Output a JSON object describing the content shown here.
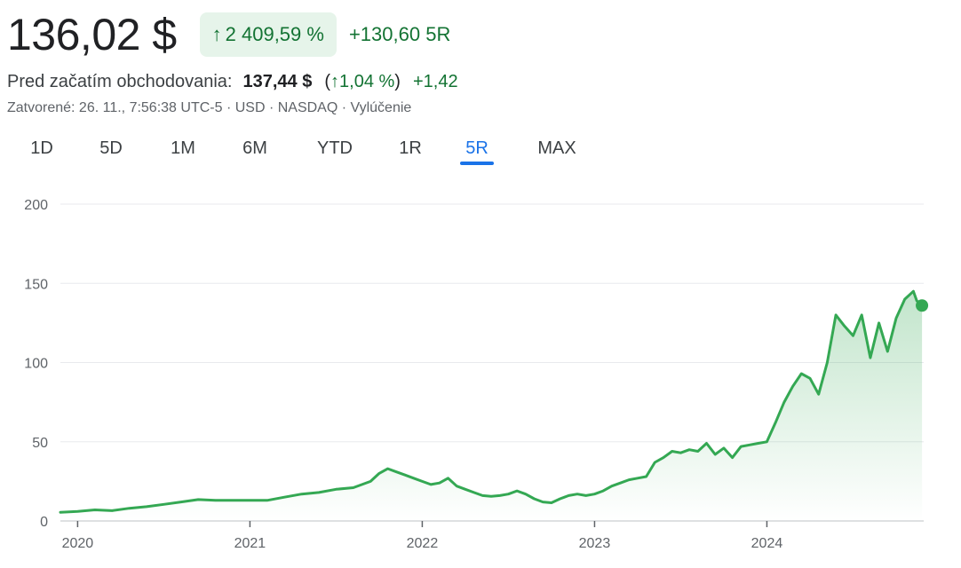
{
  "header": {
    "price": "136,02 $",
    "change_pct": "2 409,59 %",
    "change_abs": "+130,60 5R",
    "arrow_icon": "arrow-up-icon"
  },
  "premarket": {
    "label": "Pred začatím obchodovania:",
    "price": "137,44 $",
    "open_paren": "(",
    "change_pct": "1,04 %",
    "close_paren": ")",
    "change_abs": "+1,42"
  },
  "meta": {
    "text": "Zatvorené: 26. 11., 7:56:38 UTC-5 · USD · NASDAQ · Vylúčenie"
  },
  "ranges": [
    {
      "label": "1D"
    },
    {
      "label": "5D"
    },
    {
      "label": "1M"
    },
    {
      "label": "6M"
    },
    {
      "label": "YTD"
    },
    {
      "label": "1R"
    },
    {
      "label": "5R",
      "active": true
    },
    {
      "label": "MAX"
    }
  ],
  "colors": {
    "line": "#34a853",
    "positive": "#137333",
    "pill_bg": "#e6f4ea",
    "accent": "#1a73e8",
    "grid": "#e8eaed"
  },
  "chart_data": {
    "type": "area",
    "title": "",
    "xlabel": "",
    "ylabel": "",
    "ylim": [
      0,
      200
    ],
    "yticks": [
      0,
      50,
      100,
      150,
      200
    ],
    "xticks": [
      2020,
      2021,
      2022,
      2023,
      2024
    ],
    "xlim": [
      2019.9,
      2024.91
    ],
    "grid": true,
    "legend": "none",
    "series": [
      {
        "x": [
          2019.9,
          2020.0,
          2020.1,
          2020.2,
          2020.3,
          2020.4,
          2020.5,
          2020.6,
          2020.7,
          2020.8,
          2020.9,
          2021.0,
          2021.1,
          2021.2,
          2021.3,
          2021.4,
          2021.5,
          2021.6,
          2021.7,
          2021.75,
          2021.8,
          2021.85,
          2021.9,
          2021.95,
          2022.0,
          2022.05,
          2022.1,
          2022.15,
          2022.2,
          2022.25,
          2022.3,
          2022.35,
          2022.4,
          2022.45,
          2022.5,
          2022.55,
          2022.6,
          2022.65,
          2022.7,
          2022.75,
          2022.8,
          2022.85,
          2022.9,
          2022.95,
          2023.0,
          2023.05,
          2023.1,
          2023.15,
          2023.2,
          2023.25,
          2023.3,
          2023.35,
          2023.4,
          2023.45,
          2023.5,
          2023.55,
          2023.6,
          2023.65,
          2023.7,
          2023.75,
          2023.8,
          2023.85,
          2023.9,
          2023.95,
          2024.0,
          2024.05,
          2024.1,
          2024.15,
          2024.2,
          2024.25,
          2024.3,
          2024.35,
          2024.4,
          2024.45,
          2024.5,
          2024.55,
          2024.6,
          2024.65,
          2024.7,
          2024.75,
          2024.8,
          2024.85,
          2024.87,
          2024.9
        ],
        "y": [
          5.5,
          6,
          7,
          6.5,
          8,
          9,
          10.5,
          12,
          13.5,
          13,
          13,
          13,
          13,
          15,
          17,
          18,
          20,
          21,
          25,
          30,
          33,
          31,
          29,
          27,
          25,
          23,
          24,
          27,
          22,
          20,
          18,
          16,
          15.5,
          16,
          17,
          19,
          17,
          14,
          12,
          11.5,
          14,
          16,
          17,
          16,
          17,
          19,
          22,
          24,
          26,
          27,
          28,
          37,
          40,
          44,
          43,
          45,
          44,
          49,
          42,
          46,
          40,
          47,
          48,
          49,
          50,
          62,
          75,
          85,
          93,
          90,
          80,
          100,
          130,
          123,
          117,
          130,
          103,
          125,
          107,
          128,
          140,
          145,
          139,
          136
        ]
      }
    ]
  }
}
